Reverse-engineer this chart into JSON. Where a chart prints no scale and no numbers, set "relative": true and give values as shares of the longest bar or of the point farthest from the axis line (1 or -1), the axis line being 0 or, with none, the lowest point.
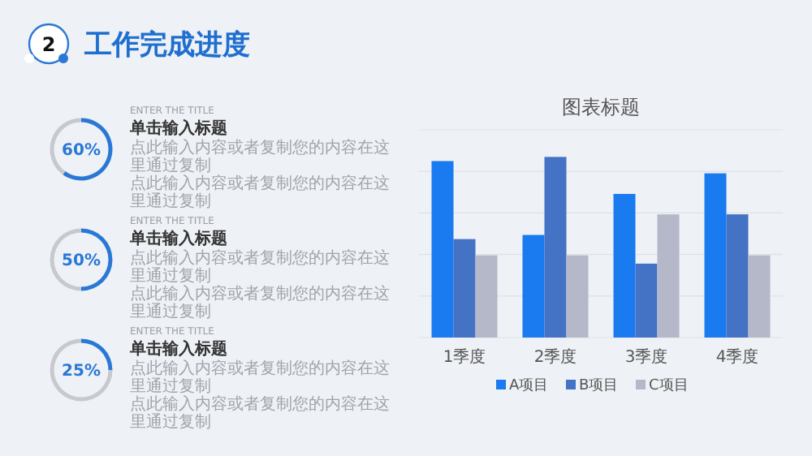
{
  "chart_data": [
    {
      "type": "other",
      "title": "工作完成进度",
      "annotations": [
        "2"
      ]
    },
    {
      "type": "donut",
      "subtitle": "ENTER THE TITLE",
      "title": "单击输入标题",
      "categories": [
        null,
        null
      ],
      "values": [
        60,
        40
      ],
      "colors": [
        "#2a78d6",
        "#c6c9ce"
      ],
      "annotations": [
        "60%",
        "点此输入内容或者复制您的内容在这里通过复制",
        "点此输入内容或者复制您的内容在这里通过复制"
      ]
    },
    {
      "type": "donut",
      "subtitle": "ENTER THE TITLE",
      "title": "单击输入标题",
      "categories": [
        null,
        null
      ],
      "values": [
        50,
        50
      ],
      "colors": [
        "#2a78d6",
        "#c6c9ce"
      ],
      "annotations": [
        "50%",
        "点此输入内容或者复制您的内容在这里通过复制",
        "点此输入内容或者复制您的内容在这里通过复制"
      ]
    },
    {
      "type": "donut",
      "subtitle": "ENTER THE TITLE",
      "title": "单击输入标题",
      "categories": [
        null,
        null
      ],
      "values": [
        25,
        75
      ],
      "colors": [
        "#2a78d6",
        "#c6c9ce"
      ],
      "annotations": [
        "25%",
        "点此输入内容或者复制您的内容在这里通过复制",
        "点此输入内容或者复制您的内容在这里通过复制"
      ]
    },
    {
      "type": "bar",
      "title": "图表标题",
      "categories": [
        "1季度",
        "2季度",
        "3季度",
        "4季度"
      ],
      "relative": true,
      "grid": "y",
      "legend": "bottom",
      "series": [
        {
          "name": "A项目",
          "color": "#1a7af0",
          "values": [
            0.977,
            0.568,
            0.795,
            0.909
          ]
        },
        {
          "name": "B项目",
          "color": "#4472c4",
          "values": [
            0.545,
            1,
            0.409,
            0.682
          ]
        },
        {
          "name": "C项目",
          "color": "#b4b8c8",
          "values": [
            0.455,
            0.455,
            0.682,
            0.455
          ]
        }
      ]
    }
  ]
}
